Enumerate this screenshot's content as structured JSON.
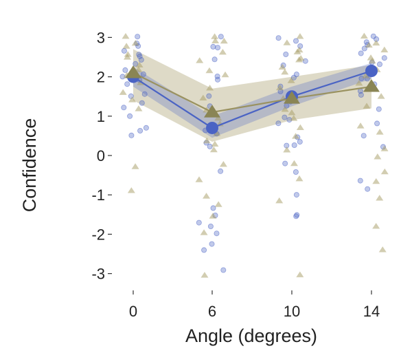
{
  "chart_data": {
    "type": "line",
    "xlabel": "Angle (degrees)",
    "ylabel": "Confidence",
    "categories": [
      "0",
      "6",
      "10",
      "14"
    ],
    "x": [
      0,
      6,
      10,
      14
    ],
    "ylim": [
      -3.3,
      3.3
    ],
    "yticks": [
      3,
      2,
      1,
      0,
      -1,
      -2,
      -3
    ],
    "y_tick_labels": [
      "3",
      "2",
      "1",
      "0",
      "-1",
      "-2",
      "-3"
    ],
    "grid": false,
    "legend": "none",
    "series": [
      {
        "color": "#4A63C4",
        "marker": "circle",
        "values": [
          2.0,
          0.7,
          1.5,
          2.15
        ],
        "ci_low": [
          1.75,
          0.45,
          1.25,
          1.95
        ],
        "ci_high": [
          2.25,
          1.0,
          1.75,
          2.35
        ],
        "points": [
          [
            3.0,
            2.9,
            2.8,
            2.7,
            2.6,
            2.5,
            2.4,
            2.3,
            2.2,
            2.1,
            2.0,
            1.9,
            1.8,
            1.6,
            1.5,
            1.3,
            1.2,
            1.0,
            0.7,
            0.6,
            0.55
          ],
          [
            3.0,
            2.8,
            2.7,
            2.4,
            2.0,
            1.9,
            1.5,
            1.3,
            1.0,
            0.6,
            0.5,
            0.3,
            0.2,
            -0.4,
            -1.3,
            -1.5,
            -1.7,
            -1.8,
            -2.0,
            -2.2,
            -2.4,
            -2.9
          ],
          [
            3.0,
            2.9,
            2.8,
            2.6,
            2.4,
            2.3,
            2.1,
            2.0,
            1.8,
            1.6,
            1.4,
            1.3,
            1.0,
            0.9,
            0.8,
            0.5,
            0.4,
            0.3,
            0.2,
            -0.2,
            -0.4,
            -1.0,
            -1.5,
            -1.55
          ],
          [
            3.0,
            2.95,
            2.9,
            2.8,
            2.7,
            2.6,
            2.5,
            2.4,
            2.3,
            2.1,
            2.0,
            1.9,
            1.8,
            1.6,
            1.5,
            1.2,
            0.8,
            0.5,
            0.2,
            -0.6,
            -0.8
          ]
        ]
      },
      {
        "color": "#8A8554",
        "marker": "triangle",
        "values": [
          2.1,
          1.1,
          1.45,
          1.75
        ],
        "ci_low": [
          1.4,
          0.35,
          0.9,
          1.2
        ],
        "ci_high": [
          2.7,
          1.7,
          2.0,
          2.3
        ],
        "points": [
          [
            3.0,
            2.9,
            2.8,
            2.6,
            2.5,
            2.3,
            2.2,
            2.0,
            1.8,
            1.6,
            1.4,
            1.2,
            -0.3,
            -0.9
          ],
          [
            3.0,
            2.95,
            2.9,
            2.6,
            2.4,
            2.2,
            2.0,
            1.7,
            1.5,
            1.2,
            1.0,
            0.8,
            0.6,
            0.4,
            0.3,
            0.1,
            -0.2,
            -0.6,
            -1.0,
            -1.2,
            -1.5,
            -2.0,
            -3.0
          ],
          [
            3.0,
            2.9,
            2.7,
            2.6,
            2.5,
            2.4,
            2.2,
            2.1,
            1.9,
            1.7,
            1.5,
            1.4,
            1.2,
            1.1,
            0.9,
            0.7,
            0.5,
            0.1,
            -0.2,
            -0.6,
            -1.1,
            -3.0
          ],
          [
            3.0,
            2.9,
            2.8,
            2.7,
            2.5,
            2.4,
            2.2,
            2.0,
            1.8,
            1.5,
            1.2,
            0.8,
            0.6,
            0.2,
            0.0,
            -0.4,
            -0.7,
            -1.1,
            -1.8,
            -2.4
          ]
        ]
      }
    ]
  }
}
